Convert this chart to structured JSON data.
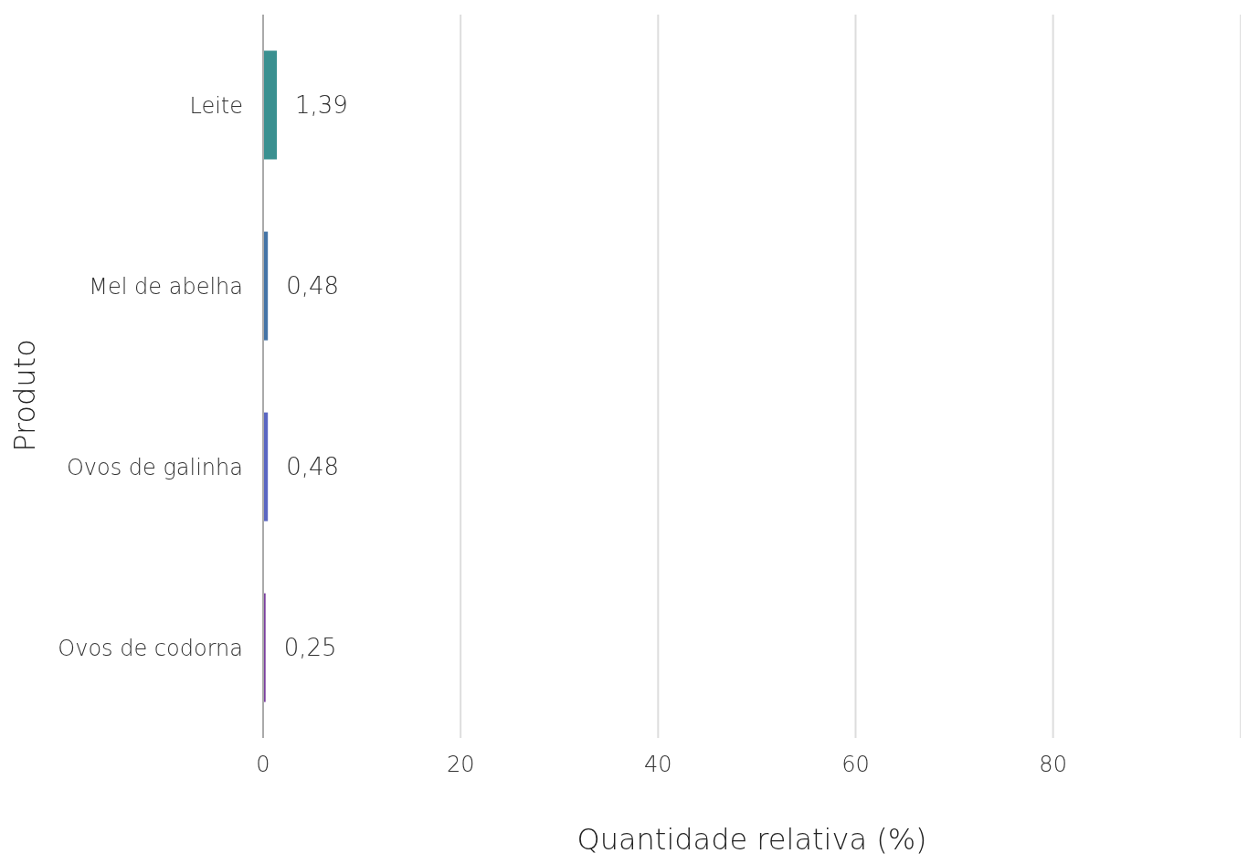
{
  "chart_data": {
    "type": "bar",
    "orientation": "horizontal",
    "xlabel": "Quantidade relativa (%)",
    "ylabel": "Produto",
    "categories": [
      "Leite",
      "Mel de abelha",
      "Ovos de galinha",
      "Ovos de codorna"
    ],
    "values": [
      1.39,
      0.48,
      0.48,
      0.25
    ],
    "colors": [
      "#3a9090",
      "#4474a6",
      "#5a66c2",
      "#7a3d9e"
    ],
    "value_labels": [
      "1,39",
      "0,48",
      "0,48",
      "0,25"
    ],
    "xlim": [
      0,
      99
    ],
    "xticks": [
      0,
      20,
      40,
      60,
      80
    ],
    "grid": "x"
  }
}
